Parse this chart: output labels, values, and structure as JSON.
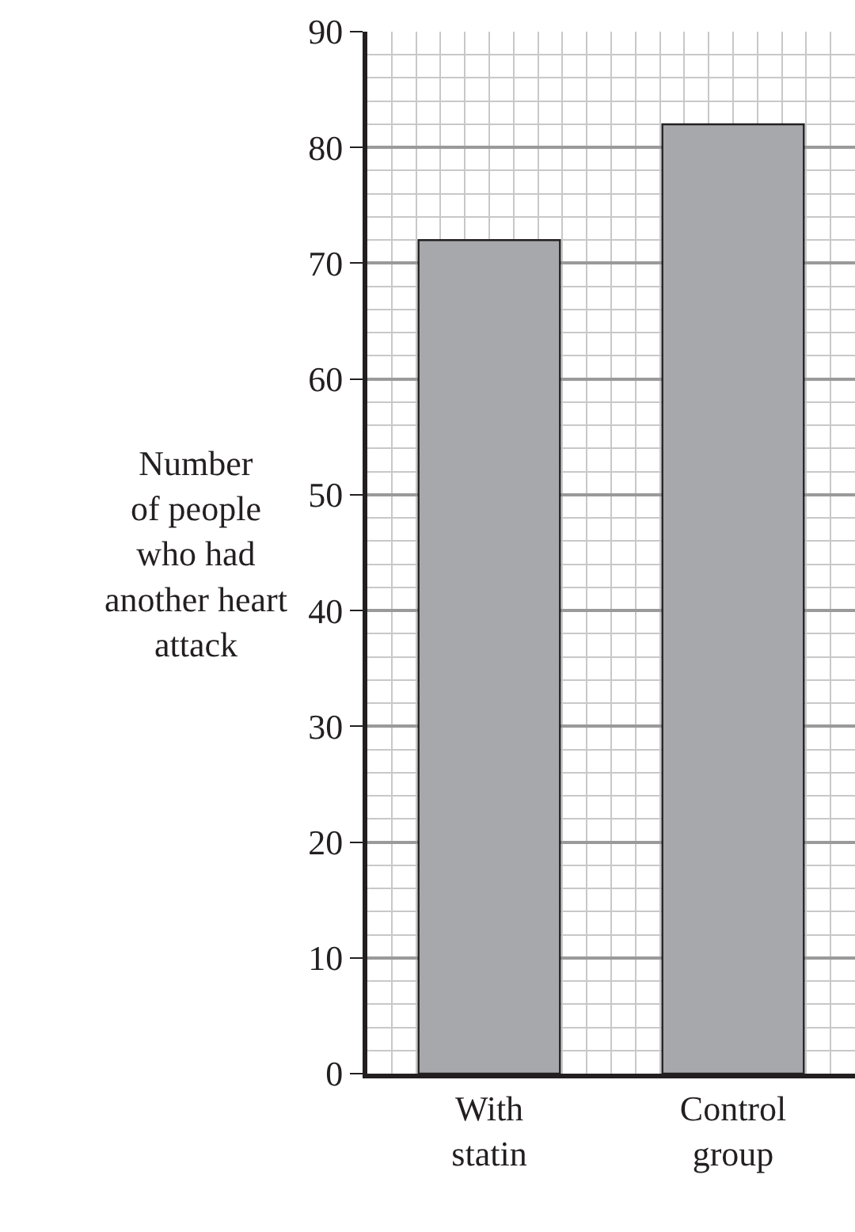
{
  "chart_data": {
    "type": "bar",
    "ylabel": "Number\nof people\nwho had\nanother heart\nattack",
    "categories": [
      "With\nstatin",
      "Control\ngroup"
    ],
    "values": [
      72,
      82
    ],
    "color": "#a7a8ac",
    "ylim": [
      0,
      90
    ],
    "yticks": [
      0,
      10,
      20,
      30,
      40,
      50,
      60,
      70,
      80,
      90
    ],
    "grid": true
  }
}
